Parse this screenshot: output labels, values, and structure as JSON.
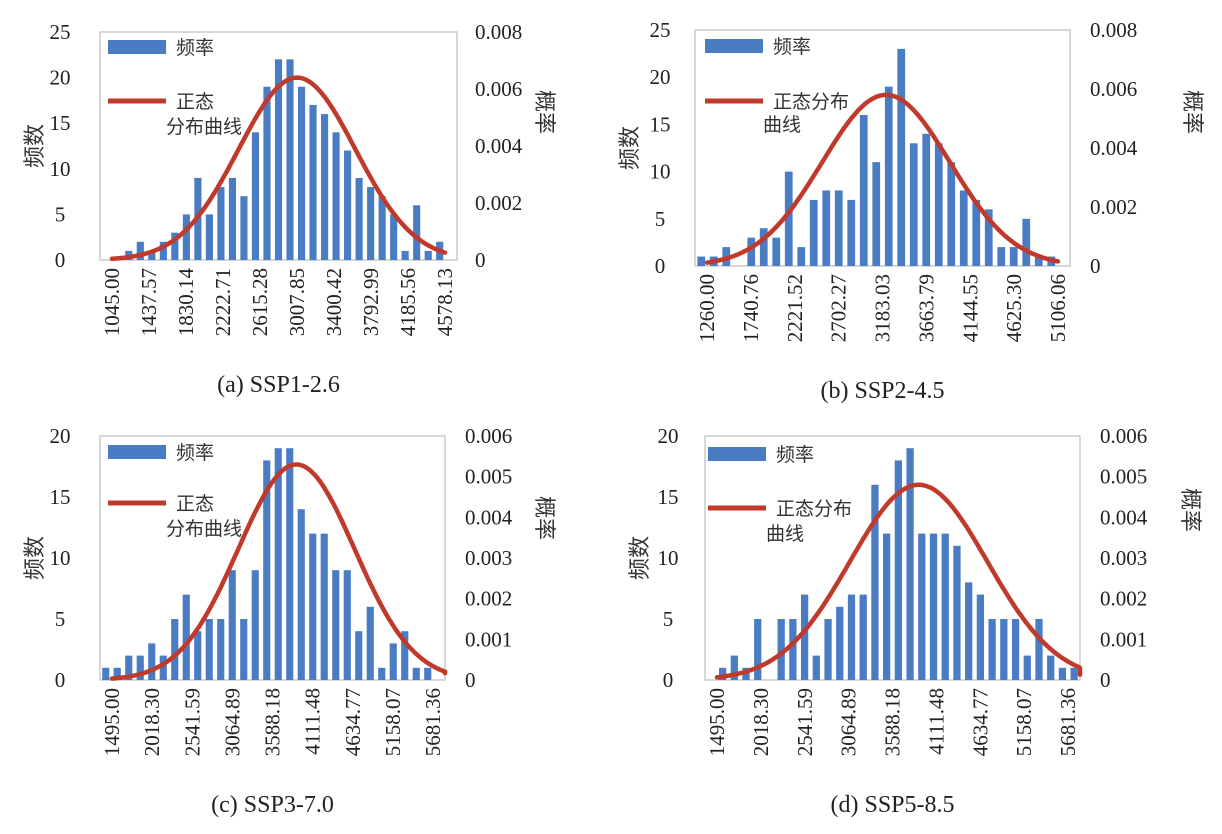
{
  "chart_data": [
    {
      "type": "bar",
      "title": "(a) SSP1-2.6",
      "ylabel": "频数",
      "y2label": "概率",
      "ylim": [
        0,
        25
      ],
      "yticks": [
        "0",
        "5",
        "10",
        "15",
        "20",
        "25"
      ],
      "y2lim": [
        0,
        0.008
      ],
      "y2ticks": [
        "0",
        "0.002",
        "0.004",
        "0.006",
        "0.008"
      ],
      "xticks": [
        "1045.00",
        "1437.57",
        "1830.14",
        "2222.71",
        "2615.28",
        "3007.85",
        "3400.42",
        "3792.99",
        "4185.56",
        "4578.13"
      ],
      "legend": [
        "频率",
        "正态分布曲线"
      ],
      "legend_position": "top-left",
      "series": [
        {
          "name": "频率",
          "values": [
            0,
            0,
            1,
            2,
            1,
            2,
            3,
            5,
            9,
            5,
            8,
            9,
            7,
            14,
            19,
            22,
            22,
            19,
            17,
            16,
            14,
            12,
            9,
            8,
            7,
            5,
            1,
            6,
            1,
            2,
            0
          ]
        },
        {
          "name": "正态分布曲线",
          "type": "line",
          "mean": 3007.85,
          "std": 620,
          "peak": 0.0064,
          "xmin": 1045.0,
          "xmax": 4578.13
        }
      ]
    },
    {
      "type": "bar",
      "title": "(b) SSP2-4.5",
      "ylabel": "频数",
      "y2label": "概率",
      "ylim": [
        0,
        25
      ],
      "yticks": [
        "0",
        "5",
        "10",
        "15",
        "20",
        "25"
      ],
      "y2lim": [
        0,
        0.008
      ],
      "y2ticks": [
        "0",
        "0.002",
        "0.004",
        "0.006",
        "0.008"
      ],
      "xticks": [
        "1260.00",
        "1740.76",
        "2221.52",
        "2702.27",
        "3183.03",
        "3663.79",
        "4144.55",
        "4625.30",
        "5106.06"
      ],
      "legend": [
        "频率",
        "正态分布曲线"
      ],
      "legend_position": "top-left",
      "series": [
        {
          "name": "频率",
          "values": [
            1,
            1,
            2,
            0,
            3,
            4,
            3,
            10,
            2,
            7,
            8,
            8,
            7,
            16,
            11,
            19,
            23,
            13,
            14,
            13,
            11,
            8,
            7,
            6,
            2,
            2,
            5,
            1,
            1,
            0
          ]
        },
        {
          "name": "正态分布曲线",
          "type": "line",
          "mean": 3222,
          "std": 700,
          "peak": 0.0058,
          "xmin": 1260.0,
          "xmax": 5106.06
        }
      ]
    },
    {
      "type": "bar",
      "title": "(c) SSP3-7.0",
      "ylabel": "频数",
      "y2label": "概率",
      "ylim": [
        0,
        20
      ],
      "yticks": [
        "0",
        "5",
        "10",
        "15",
        "20"
      ],
      "y2lim": [
        0,
        0.006
      ],
      "y2ticks": [
        "0",
        "0.001",
        "0.002",
        "0.003",
        "0.004",
        "0.005",
        "0.006"
      ],
      "xticks": [
        "1495.00",
        "2018.30",
        "2541.59",
        "3064.89",
        "3588.18",
        "4111.48",
        "4634.77",
        "5158.07",
        "5681.36"
      ],
      "legend": [
        "频率",
        "正态分布曲线"
      ],
      "legend_position": "top-left",
      "series": [
        {
          "name": "频率",
          "values": [
            1,
            1,
            2,
            2,
            3,
            2,
            5,
            7,
            4,
            5,
            5,
            9,
            5,
            9,
            18,
            19,
            19,
            14,
            12,
            12,
            9,
            9,
            4,
            6,
            1,
            3,
            4,
            1,
            1,
            0
          ]
        },
        {
          "name": "正态分布曲线",
          "type": "line",
          "mean": 3900,
          "std": 760,
          "peak": 0.0053,
          "xmin": 1495.0,
          "xmax": 5900.0
        }
      ]
    },
    {
      "type": "bar",
      "title": "(d) SSP5-8.5",
      "ylabel": "频数",
      "y2label": "概率",
      "ylim": [
        0,
        20
      ],
      "yticks": [
        "0",
        "5",
        "10",
        "15",
        "20"
      ],
      "y2lim": [
        0,
        0.006
      ],
      "y2ticks": [
        "0",
        "0.001",
        "0.002",
        "0.003",
        "0.004",
        "0.005",
        "0.006"
      ],
      "xticks": [
        "1495.00",
        "2018.30",
        "2541.59",
        "3064.89",
        "3588.18",
        "4111.48",
        "4634.77",
        "5158.07",
        "5681.36"
      ],
      "legend": [
        "频率",
        "正态分布曲线"
      ],
      "legend_position": "top-left",
      "series": [
        {
          "name": "频率",
          "values": [
            0,
            1,
            2,
            1,
            5,
            0,
            5,
            5,
            7,
            2,
            5,
            6,
            7,
            7,
            16,
            12,
            18,
            19,
            12,
            12,
            12,
            11,
            8,
            7,
            5,
            5,
            5,
            2,
            5,
            2,
            1,
            1
          ]
        },
        {
          "name": "正态分布曲线",
          "type": "line",
          "mean": 3900,
          "std": 820,
          "peak": 0.0048,
          "xmin": 1495.0,
          "xmax": 6100.0
        }
      ]
    }
  ]
}
